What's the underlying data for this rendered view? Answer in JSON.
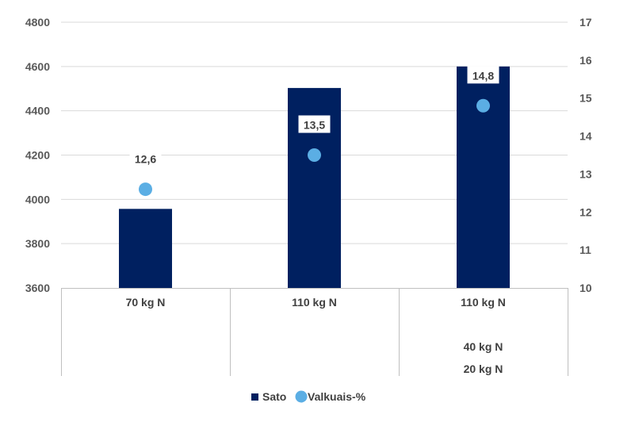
{
  "chart_data": {
    "type": "bar",
    "categories": [
      [
        "70 kg N"
      ],
      [
        "110 kg N"
      ],
      [
        "110 kg N",
        "40 kg N",
        "20 kg N"
      ]
    ],
    "series": [
      {
        "name": "Sato",
        "type": "bar",
        "axis": "left",
        "color": "#002060",
        "values": [
          3957,
          4503,
          4600
        ]
      },
      {
        "name": "Valkuais-%",
        "type": "scatter",
        "axis": "right",
        "color": "#5BAEE4",
        "values": [
          12.6,
          13.5,
          14.8
        ],
        "data_labels": [
          "12,6",
          "13,5",
          "14,8"
        ]
      }
    ],
    "y_left": {
      "min": 3600,
      "max": 4800,
      "ticks": [
        3600,
        3800,
        4000,
        4200,
        4400,
        4600,
        4800
      ]
    },
    "y_right": {
      "min": 10,
      "max": 17,
      "ticks": [
        10,
        11,
        12,
        13,
        14,
        15,
        16,
        17
      ]
    },
    "title": "",
    "xlabel": "",
    "ylabel": "",
    "grid": true,
    "legend": "bottom"
  }
}
